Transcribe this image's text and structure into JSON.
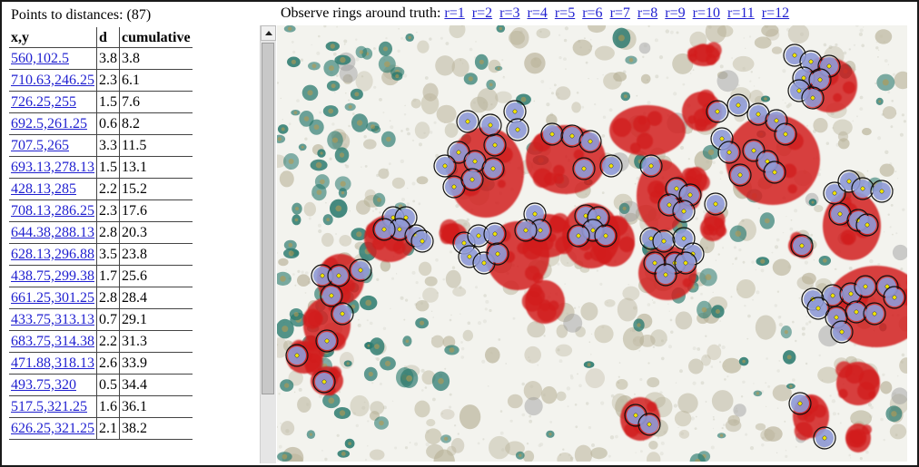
{
  "left": {
    "title": "Points to distances: (87)",
    "headers": [
      "x,y",
      "d",
      "cumulative"
    ],
    "rows": [
      {
        "xy": "560,102.5",
        "d": "3.8",
        "cum": "3.8"
      },
      {
        "xy": "710.63,246.25",
        "d": "2.3",
        "cum": "6.1"
      },
      {
        "xy": "726.25,255",
        "d": "1.5",
        "cum": "7.6"
      },
      {
        "xy": "692.5,261.25",
        "d": "0.6",
        "cum": "8.2"
      },
      {
        "xy": "707.5,265",
        "d": "3.3",
        "cum": "11.5"
      },
      {
        "xy": "693.13,278.13",
        "d": "1.5",
        "cum": "13.1"
      },
      {
        "xy": "428.13,285",
        "d": "2.2",
        "cum": "15.2"
      },
      {
        "xy": "708.13,286.25",
        "d": "2.3",
        "cum": "17.6"
      },
      {
        "xy": "644.38,288.13",
        "d": "2.8",
        "cum": "20.3"
      },
      {
        "xy": "628.13,296.88",
        "d": "3.5",
        "cum": "23.8"
      },
      {
        "xy": "438.75,299.38",
        "d": "1.7",
        "cum": "25.6"
      },
      {
        "xy": "661.25,301.25",
        "d": "2.8",
        "cum": "28.4"
      },
      {
        "xy": "433.75,313.13",
        "d": "0.7",
        "cum": "29.1"
      },
      {
        "xy": "683.75,314.38",
        "d": "2.2",
        "cum": "31.3"
      },
      {
        "xy": "471.88,318.13",
        "d": "2.6",
        "cum": "33.9"
      },
      {
        "xy": "493.75,320",
        "d": "0.5",
        "cum": "34.4"
      },
      {
        "xy": "517.5,321.25",
        "d": "1.6",
        "cum": "36.1"
      },
      {
        "xy": "626.25,321.25",
        "d": "2.1",
        "cum": "38.2"
      }
    ]
  },
  "rings": {
    "label": "Observe rings around truth:",
    "links": [
      "r=1",
      "r=2",
      "r=3",
      "r=4",
      "r=5",
      "r=6",
      "r=7",
      "r=8",
      "r=9",
      "r=10",
      "r=11",
      "r=12"
    ]
  },
  "colors": {
    "link": "#1f1fd0",
    "blob": "#d21c1c",
    "nucleus": "#8f9ad6",
    "green_cells": "#2b7a6e",
    "tan_cells": "#b9b39a",
    "marker": "#f2e600"
  }
}
